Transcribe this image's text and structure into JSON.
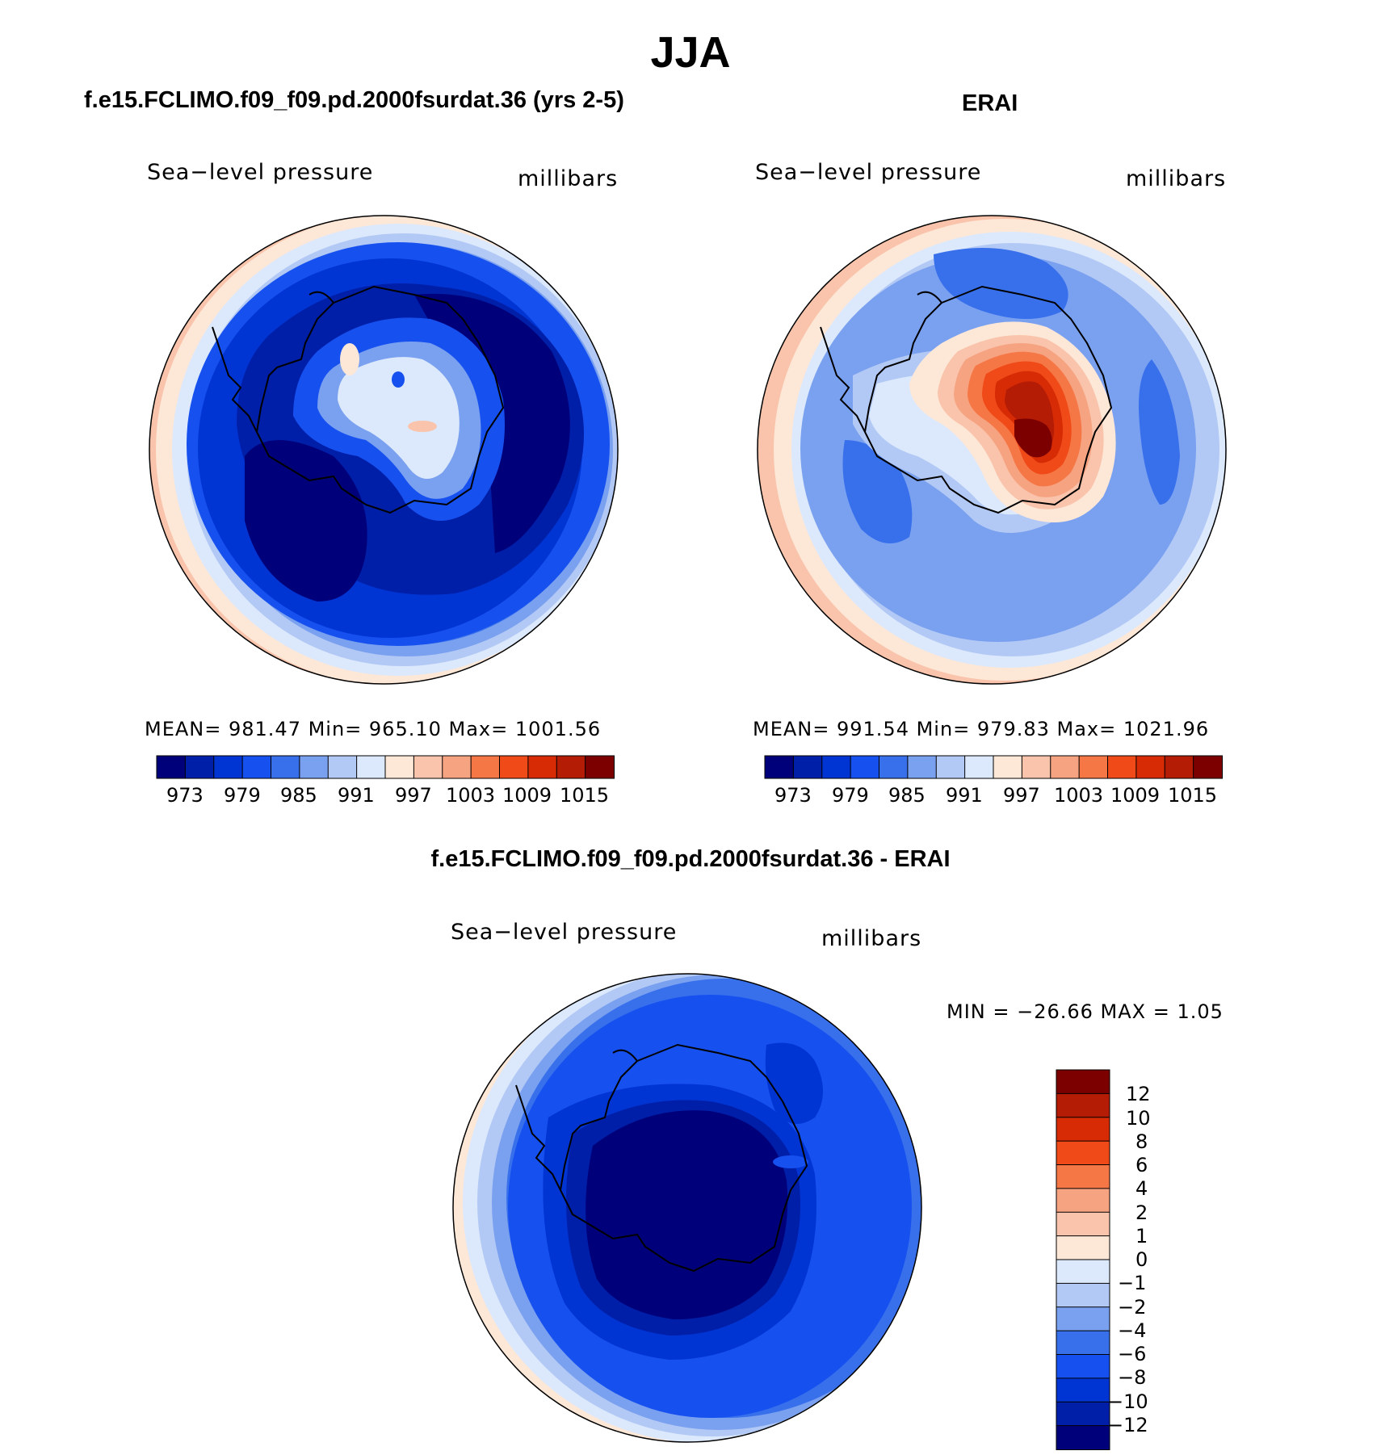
{
  "page_title": "JJA",
  "colors": {
    "abs_palette": [
      "#00007a",
      "#001fa8",
      "#0035d3",
      "#1650ef",
      "#3870ec",
      "#7aa0f0",
      "#b3c9f5",
      "#dce9fc",
      "#fde7d7",
      "#f9c4ab",
      "#f6a382",
      "#f67746",
      "#ef4a18",
      "#d72b05",
      "#b51c05",
      "#7d0000"
    ],
    "diff_palette": [
      "#7d0000",
      "#b51c05",
      "#d72b05",
      "#ef4a18",
      "#f67746",
      "#f6a382",
      "#f9c4ab",
      "#fde7d7",
      "#dce9fc",
      "#b3c9f5",
      "#7aa0f0",
      "#3870ec",
      "#1650ef",
      "#0035d3",
      "#001fa8",
      "#00007a"
    ],
    "coastline": "#000000"
  },
  "panels": {
    "model": {
      "title": "f.e15.FCLIMO.f09_f09.pd.2000fsurdat.36 (yrs 2-5)",
      "variable": "Sea−level pressure",
      "units": "millibars",
      "stats": "MEAN=  981.47   Min=  965.10   Max=  1001.56",
      "tick_labels": [
        "973",
        "979",
        "985",
        "991",
        "997",
        "1003",
        "1009",
        "1015"
      ]
    },
    "obs": {
      "title": "ERAI",
      "variable": "Sea−level pressure",
      "units": "millibars",
      "stats": "MEAN=  991.54   Min=  979.83   Max=  1021.96",
      "tick_labels": [
        "973",
        "979",
        "985",
        "991",
        "997",
        "1003",
        "1009",
        "1015"
      ]
    },
    "diff": {
      "title": "f.e15.FCLIMO.f09_f09.pd.2000fsurdat.36 - ERAI",
      "variable": "Sea−level pressure",
      "units": "millibars",
      "stats": "MIN = −26.66 MAX =    1.05",
      "tick_labels": [
        "12",
        "10",
        "8",
        "6",
        "4",
        "2",
        "1",
        "0",
        "−1",
        "−2",
        "−4",
        "−6",
        "−8",
        "−10",
        "−12"
      ]
    }
  },
  "chart_data": [
    {
      "type": "heatmap",
      "title": "f.e15.FCLIMO.f09_f09.pd.2000fsurdat.36 (yrs 2-5)",
      "projection": "south-polar-stereographic",
      "variable": "Sea-level pressure",
      "units": "millibars",
      "mean": 981.47,
      "min": 965.1,
      "max": 1001.56,
      "levels": [
        970,
        973,
        976,
        979,
        982,
        985,
        988,
        991,
        994,
        997,
        1000,
        1003,
        1006,
        1009,
        1012,
        1015
      ],
      "colorbar_ticks": [
        973,
        979,
        985,
        991,
        997,
        1003,
        1009,
        1015
      ]
    },
    {
      "type": "heatmap",
      "title": "ERAI",
      "projection": "south-polar-stereographic",
      "variable": "Sea-level pressure",
      "units": "millibars",
      "mean": 991.54,
      "min": 979.83,
      "max": 1021.96,
      "levels": [
        970,
        973,
        976,
        979,
        982,
        985,
        988,
        991,
        994,
        997,
        1000,
        1003,
        1006,
        1009,
        1012,
        1015
      ],
      "colorbar_ticks": [
        973,
        979,
        985,
        991,
        997,
        1003,
        1009,
        1015
      ]
    },
    {
      "type": "heatmap",
      "title": "f.e15.FCLIMO.f09_f09.pd.2000fsurdat.36 - ERAI",
      "projection": "south-polar-stereographic",
      "variable": "Sea-level pressure",
      "units": "millibars",
      "min": -26.66,
      "max": 1.05,
      "levels": [
        12,
        10,
        8,
        6,
        4,
        2,
        1,
        0,
        -1,
        -2,
        -4,
        -6,
        -8,
        -10,
        -12
      ],
      "colorbar_ticks": [
        12,
        10,
        8,
        6,
        4,
        2,
        1,
        0,
        -1,
        -2,
        -4,
        -6,
        -8,
        -10,
        -12
      ]
    }
  ]
}
